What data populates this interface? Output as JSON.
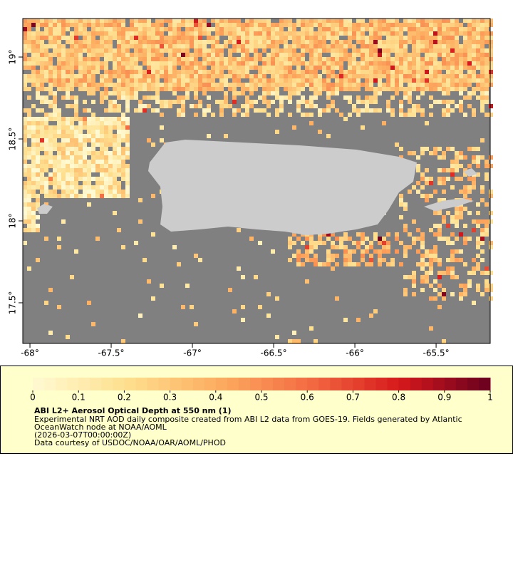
{
  "map": {
    "xlim": [
      -68.044,
      -65.167
    ],
    "ylim": [
      17.252,
      19.235
    ],
    "xticks": [
      {
        "value": -68,
        "label": "-68°"
      },
      {
        "value": -67.5,
        "label": "-67.5°"
      },
      {
        "value": -67,
        "label": "-67°"
      },
      {
        "value": -66.5,
        "label": "-66.5°"
      },
      {
        "value": -66,
        "label": "-66°"
      },
      {
        "value": -65.5,
        "label": "-65.5°"
      }
    ],
    "yticks": [
      {
        "value": 19,
        "label": "19°"
      },
      {
        "value": 18.5,
        "label": "18.5°"
      },
      {
        "value": 18,
        "label": "18°"
      },
      {
        "value": 17.5,
        "label": "17.5°"
      }
    ]
  },
  "colorbar": {
    "range": [
      0,
      1
    ],
    "ticks": [
      0,
      0.1,
      0.2,
      0.3,
      0.4,
      0.5,
      0.6,
      0.7,
      0.8,
      0.9,
      1
    ]
  },
  "legend": {
    "title": "ABI L2+ Aerosol Optical Depth at 550 nm (1)",
    "lines": [
      "Experimental NRT AOD daily composite created from ABI L2 data from GOES-19. Fields generated by Atlantic",
      "OceanWatch node at NOAA/AOML",
      "(2026-03-07T00:00:00Z)",
      "Data courtesy of USDOC/NOAA/OAR/AOML/PHOD"
    ]
  }
}
